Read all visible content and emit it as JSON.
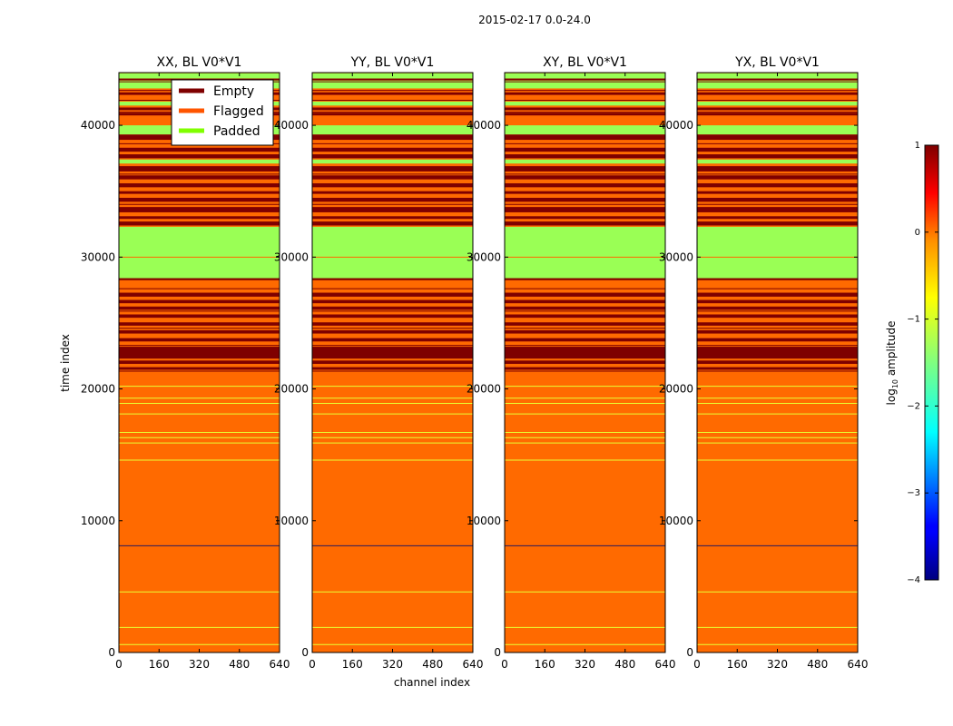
{
  "figure": {
    "suptitle": "2015-02-17 0.0-24.0",
    "xlabel": "channel index",
    "ylabel": "time index"
  },
  "legend": {
    "placement": "top-right of first panel",
    "entries": [
      {
        "label": "Empty",
        "color": "#7f0000"
      },
      {
        "label": "Flagged",
        "color": "#ff5500"
      },
      {
        "label": "Padded",
        "color": "#80ff00"
      }
    ]
  },
  "colorbar": {
    "label_prefix": "log",
    "label_sub": "10",
    "label_suffix": " amplitude",
    "ticks": [
      1,
      0,
      -1,
      -2,
      -3,
      -4
    ],
    "tick_labels": [
      "1",
      "0",
      "−1",
      "−2",
      "−3",
      "−4"
    ],
    "range": [
      -4,
      1
    ],
    "colormap": "jet"
  },
  "chart_data": {
    "type": "heatmap",
    "xlim": [
      0,
      640
    ],
    "ylim": [
      0,
      44000
    ],
    "x_ticks": [
      0,
      160,
      320,
      480,
      640
    ],
    "x_tick_labels": [
      "0",
      "160",
      "320",
      "480",
      "640"
    ],
    "y_ticks": [
      0,
      10000,
      20000,
      30000,
      40000
    ],
    "y_tick_labels": [
      "0",
      "10000",
      "20000",
      "30000",
      "40000"
    ],
    "background_color": "#ff6a00",
    "panels": [
      {
        "title": "XX, BL V0*V1"
      },
      {
        "title": "YY, BL V0*V1"
      },
      {
        "title": "XY, BL V0*V1"
      },
      {
        "title": "YX, BL V0*V1"
      }
    ],
    "bands": [
      {
        "y0": 43550,
        "y1": 43950,
        "kind": "padded",
        "color": "#9aff55"
      },
      {
        "y0": 43400,
        "y1": 43550,
        "kind": "empty",
        "color": "#7f0000"
      },
      {
        "y0": 42800,
        "y1": 43400,
        "kind": "padded",
        "color": "#9aff55"
      },
      {
        "y0": 42300,
        "y1": 42500,
        "kind": "empty",
        "color": "#7f0000"
      },
      {
        "y0": 42000,
        "y1": 42300,
        "kind": "flagged",
        "color": "#ff6a00"
      },
      {
        "y0": 41500,
        "y1": 41800,
        "kind": "padded",
        "color": "#9aff55"
      },
      {
        "y0": 41150,
        "y1": 41350,
        "kind": "empty",
        "color": "#7f0000"
      },
      {
        "y0": 40750,
        "y1": 40950,
        "kind": "empty",
        "color": "#7f0000"
      },
      {
        "y0": 40000,
        "y1": 40500,
        "kind": "flagged",
        "color": "#ff6a00"
      },
      {
        "y0": 39300,
        "y1": 40000,
        "kind": "padded",
        "color": "#9aff55"
      },
      {
        "y0": 38900,
        "y1": 39300,
        "kind": "empty",
        "color": "#7f0000"
      },
      {
        "y0": 38000,
        "y1": 38300,
        "kind": "empty",
        "color": "#7f0000"
      },
      {
        "y0": 37500,
        "y1": 37800,
        "kind": "empty",
        "color": "#7f0000"
      },
      {
        "y0": 37100,
        "y1": 37400,
        "kind": "padded",
        "color": "#9aff55"
      },
      {
        "y0": 36500,
        "y1": 36900,
        "kind": "empty",
        "color": "#7f0000"
      },
      {
        "y0": 35900,
        "y1": 36200,
        "kind": "empty",
        "color": "#7f0000"
      },
      {
        "y0": 35300,
        "y1": 35600,
        "kind": "empty",
        "color": "#7f0000"
      },
      {
        "y0": 34800,
        "y1": 35000,
        "kind": "empty",
        "color": "#7f0000"
      },
      {
        "y0": 34200,
        "y1": 34500,
        "kind": "empty",
        "color": "#7f0000"
      },
      {
        "y0": 33400,
        "y1": 33800,
        "kind": "empty",
        "color": "#7f0000"
      },
      {
        "y0": 32900,
        "y1": 33100,
        "kind": "empty",
        "color": "#7f0000"
      },
      {
        "y0": 32400,
        "y1": 32700,
        "kind": "empty",
        "color": "#7f0000"
      },
      {
        "y0": 28400,
        "y1": 32300,
        "kind": "padded",
        "color": "#9aff55"
      },
      {
        "y0": 28250,
        "y1": 28400,
        "kind": "empty",
        "color": "#7f0000"
      },
      {
        "y0": 27000,
        "y1": 27300,
        "kind": "empty",
        "color": "#7f0000"
      },
      {
        "y0": 26500,
        "y1": 26750,
        "kind": "empty",
        "color": "#7f0000"
      },
      {
        "y0": 26000,
        "y1": 26250,
        "kind": "empty",
        "color": "#7f0000"
      },
      {
        "y0": 25400,
        "y1": 25650,
        "kind": "empty",
        "color": "#7f0000"
      },
      {
        "y0": 24800,
        "y1": 25050,
        "kind": "empty",
        "color": "#7f0000"
      },
      {
        "y0": 24200,
        "y1": 24450,
        "kind": "empty",
        "color": "#7f0000"
      },
      {
        "y0": 23600,
        "y1": 23850,
        "kind": "empty",
        "color": "#7f0000"
      },
      {
        "y0": 22300,
        "y1": 23200,
        "kind": "empty",
        "color": "#7f0000"
      },
      {
        "y0": 21900,
        "y1": 22150,
        "kind": "empty",
        "color": "#7f0000"
      },
      {
        "y0": 21450,
        "y1": 21650,
        "kind": "empty",
        "color": "#7f0000"
      }
    ],
    "lines": [
      {
        "y": 43300,
        "kind": "thin-dark",
        "color": "#7f0000"
      },
      {
        "y": 42650,
        "kind": "thin-dark",
        "color": "#7f0000"
      },
      {
        "y": 41900,
        "kind": "thin-dark",
        "color": "#7f0000"
      },
      {
        "y": 41000,
        "kind": "thin-dark",
        "color": "#7f0000"
      },
      {
        "y": 38600,
        "kind": "thin-dark",
        "color": "#7f0000"
      },
      {
        "y": 36300,
        "kind": "thin-dark",
        "color": "#7f0000"
      },
      {
        "y": 34000,
        "kind": "thin-dark",
        "color": "#7f0000"
      },
      {
        "y": 30000,
        "kind": "thin-orange",
        "color": "#ff6a00"
      },
      {
        "y": 27600,
        "kind": "thin-dark",
        "color": "#7f0000"
      },
      {
        "y": 25900,
        "kind": "thin-dark",
        "color": "#7f0000"
      },
      {
        "y": 24600,
        "kind": "thin-dark",
        "color": "#7f0000"
      },
      {
        "y": 23300,
        "kind": "thin-dark",
        "color": "#7f0000"
      },
      {
        "y": 21350,
        "kind": "thin-dark",
        "color": "#7f0000"
      },
      {
        "y": 20200,
        "kind": "thin-yellow",
        "color": "#e8ff33"
      },
      {
        "y": 19300,
        "kind": "thin-yellow",
        "color": "#e8ff33"
      },
      {
        "y": 18900,
        "kind": "thin-yellow",
        "color": "#e8ff33"
      },
      {
        "y": 18100,
        "kind": "thin-yellow",
        "color": "#e8ff33"
      },
      {
        "y": 16700,
        "kind": "thin-yellow",
        "color": "#e8ff33"
      },
      {
        "y": 16300,
        "kind": "thin-yellow",
        "color": "#e8ff33"
      },
      {
        "y": 15900,
        "kind": "thin-yellow",
        "color": "#e8ff33"
      },
      {
        "y": 14600,
        "kind": "thin-yellow",
        "color": "#e8ff33"
      },
      {
        "y": 8100,
        "kind": "thin-dark",
        "color": "#2a1a5e"
      },
      {
        "y": 4600,
        "kind": "thin-yellow",
        "color": "#e8ff33"
      },
      {
        "y": 1900,
        "kind": "thin-yellow",
        "color": "#e8ff33"
      },
      {
        "y": 600,
        "kind": "thin-yellow",
        "color": "#e8ff33"
      }
    ]
  }
}
